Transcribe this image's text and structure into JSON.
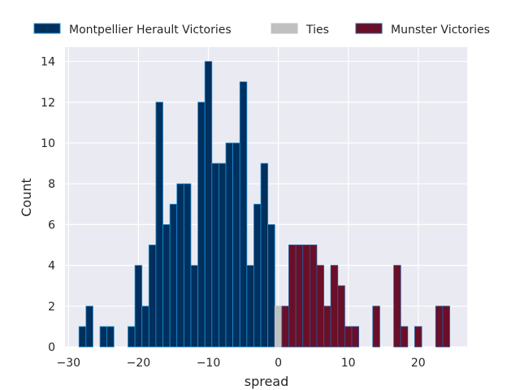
{
  "chart_data": {
    "type": "bar",
    "title": "",
    "xlabel": "spread",
    "ylabel": "Count",
    "xlim": [
      -30.5,
      27
    ],
    "ylim": [
      0,
      14.7
    ],
    "xticks": [
      -30,
      -20,
      -10,
      0,
      10,
      20
    ],
    "xtick_labels": [
      "−30",
      "−20",
      "−10",
      "0",
      "10",
      "20"
    ],
    "yticks": [
      0,
      2,
      4,
      6,
      8,
      10,
      12,
      14
    ],
    "grid": true,
    "legend_position": "top",
    "bin_width": 1,
    "series": [
      {
        "name": "Montpellier Herault Victories",
        "color": "#00305e",
        "edge_color": "#1f8fd6",
        "bins": [
          {
            "x": -28,
            "count": 1
          },
          {
            "x": -27,
            "count": 2
          },
          {
            "x": -25,
            "count": 1
          },
          {
            "x": -24,
            "count": 1
          },
          {
            "x": -21,
            "count": 1
          },
          {
            "x": -20,
            "count": 4
          },
          {
            "x": -19,
            "count": 2
          },
          {
            "x": -18,
            "count": 5
          },
          {
            "x": -17,
            "count": 12
          },
          {
            "x": -16,
            "count": 6
          },
          {
            "x": -15,
            "count": 7
          },
          {
            "x": -14,
            "count": 8
          },
          {
            "x": -13,
            "count": 8
          },
          {
            "x": -12,
            "count": 4
          },
          {
            "x": -11,
            "count": 12
          },
          {
            "x": -10,
            "count": 14
          },
          {
            "x": -9,
            "count": 9
          },
          {
            "x": -8,
            "count": 9
          },
          {
            "x": -7,
            "count": 10
          },
          {
            "x": -6,
            "count": 10
          },
          {
            "x": -5,
            "count": 13
          },
          {
            "x": -4,
            "count": 4
          },
          {
            "x": -3,
            "count": 7
          },
          {
            "x": -2,
            "count": 9
          },
          {
            "x": -1,
            "count": 6
          }
        ]
      },
      {
        "name": "Ties",
        "color": "#c0c0c0",
        "edge_color": "#c0c0c0",
        "bins": [
          {
            "x": 0,
            "count": 2
          }
        ]
      },
      {
        "name": "Munster Victories",
        "color": "#6b0f28",
        "edge_color": "#1f5fa0",
        "bins": [
          {
            "x": 1,
            "count": 2
          },
          {
            "x": 2,
            "count": 5
          },
          {
            "x": 3,
            "count": 5
          },
          {
            "x": 4,
            "count": 5
          },
          {
            "x": 5,
            "count": 5
          },
          {
            "x": 6,
            "count": 4
          },
          {
            "x": 7,
            "count": 2
          },
          {
            "x": 8,
            "count": 4
          },
          {
            "x": 9,
            "count": 3
          },
          {
            "x": 10,
            "count": 1
          },
          {
            "x": 11,
            "count": 1
          },
          {
            "x": 14,
            "count": 2
          },
          {
            "x": 17,
            "count": 4
          },
          {
            "x": 18,
            "count": 1
          },
          {
            "x": 20,
            "count": 1
          },
          {
            "x": 23,
            "count": 2
          },
          {
            "x": 24,
            "count": 2
          }
        ]
      }
    ]
  }
}
